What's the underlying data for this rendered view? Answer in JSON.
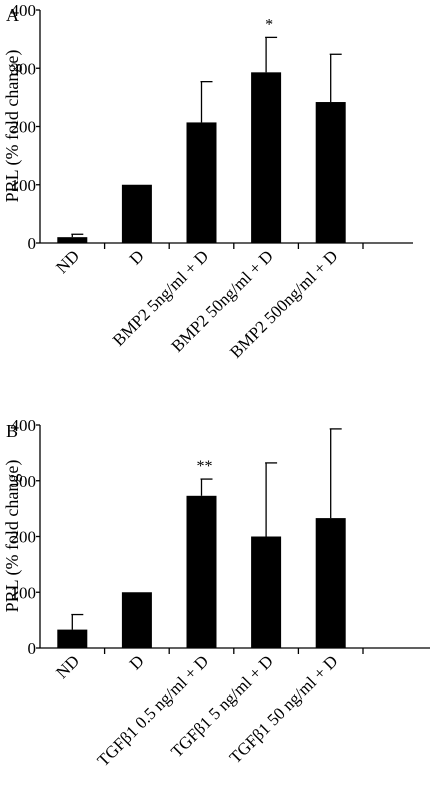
{
  "chart_data": [
    {
      "type": "bar",
      "panel_label": "A",
      "ylabel": "PRL (% fold change)",
      "ylim": [
        0,
        400
      ],
      "yticks": [
        0,
        100,
        200,
        300,
        400
      ],
      "categories": [
        "ND",
        "D",
        "BMP2 5ng/ml + D",
        "BMP2 50ng/ml + D",
        "BMP2 500ng/ml + D"
      ],
      "values": [
        10,
        100,
        207,
        293,
        242
      ],
      "errors": [
        5,
        0,
        70,
        60,
        82
      ],
      "significance": [
        "",
        "",
        "",
        "*",
        ""
      ],
      "bar_color": "#000000"
    },
    {
      "type": "bar",
      "panel_label": "B",
      "ylabel": "PRL (% fold change)",
      "ylim": [
        0,
        400
      ],
      "yticks": [
        0,
        100,
        200,
        300,
        400
      ],
      "categories": [
        "ND",
        "D",
        "TGFβ1 0.5 ng/ml + D",
        "TGFβ1 5 ng/ml + D",
        "TGFβ1 50 ng/ml + D"
      ],
      "values": [
        33,
        100,
        273,
        200,
        233
      ],
      "errors": [
        27,
        0,
        30,
        132,
        160
      ],
      "significance": [
        "",
        "",
        "**",
        "",
        ""
      ],
      "bar_color": "#000000"
    }
  ]
}
